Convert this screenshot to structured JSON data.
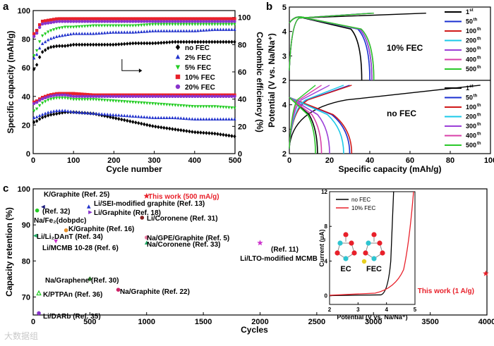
{
  "chart_data": [
    {
      "panel": "a",
      "type": "scatter",
      "xlabel": "Cycle number",
      "ylabel": "Specific capacity (mAh/g)",
      "y2label": "Coulombic efficiency (%)",
      "xlim": [
        0,
        500
      ],
      "ylim": [
        0,
        100
      ],
      "y2lim": [
        0,
        105
      ],
      "xticks": [
        0,
        100,
        200,
        300,
        400,
        500
      ],
      "yticks": [
        0,
        20,
        40,
        60,
        80,
        100
      ],
      "y2ticks": [
        0,
        20,
        40,
        60,
        80,
        100
      ],
      "legend": [
        {
          "name": "no FEC",
          "color": "#000000",
          "marker": "diamond"
        },
        {
          "name": "2% FEC",
          "color": "#2233cc",
          "marker": "triangle"
        },
        {
          "name": "5% FEC",
          "color": "#22cc22",
          "marker": "triangle-down"
        },
        {
          "name": "10% FEC",
          "color": "#e8202a",
          "marker": "square"
        },
        {
          "name": "20% FEC",
          "color": "#8833cc",
          "marker": "circle"
        }
      ],
      "x": [
        5,
        20,
        40,
        60,
        80,
        100,
        150,
        200,
        250,
        300,
        350,
        400,
        450,
        500
      ],
      "capacity_series": [
        {
          "name": "no FEC",
          "values": [
            22,
            25,
            27,
            28,
            29,
            29,
            28,
            25,
            22,
            19,
            17,
            15,
            14,
            12
          ]
        },
        {
          "name": "2% FEC",
          "values": [
            25,
            27,
            29,
            30,
            30,
            29,
            28,
            27,
            26,
            25,
            25,
            24,
            24,
            24
          ]
        },
        {
          "name": "5% FEC",
          "values": [
            30,
            35,
            38,
            39,
            39,
            38,
            38,
            37,
            36,
            35,
            34,
            33,
            33,
            32
          ]
        },
        {
          "name": "10% FEC",
          "values": [
            36,
            39,
            41,
            42,
            42,
            42,
            41,
            41,
            41,
            41,
            41,
            41,
            41,
            41
          ]
        },
        {
          "name": "20% FEC",
          "values": [
            35,
            38,
            40,
            41,
            41,
            40,
            40,
            40,
            40,
            40,
            40,
            40,
            40,
            40
          ]
        }
      ],
      "efficiency_series": [
        {
          "name": "no FEC",
          "values": [
            62,
            74,
            78,
            79,
            79,
            80,
            80,
            80,
            81,
            81,
            82,
            82,
            82,
            82
          ]
        },
        {
          "name": "2% FEC",
          "values": [
            70,
            80,
            84,
            86,
            87,
            88,
            88,
            89,
            89,
            90,
            90,
            90,
            91,
            91
          ]
        },
        {
          "name": "5% FEC",
          "values": [
            72,
            86,
            90,
            92,
            93,
            93,
            94,
            94,
            94,
            95,
            95,
            95,
            95,
            95
          ]
        },
        {
          "name": "10% FEC",
          "values": [
            88,
            97,
            98,
            99,
            99,
            99,
            99,
            99,
            99,
            99,
            99,
            99,
            99,
            99
          ]
        },
        {
          "name": "20% FEC",
          "values": [
            86,
            95,
            96,
            97,
            97,
            97,
            97,
            97,
            97,
            97,
            97,
            97,
            97,
            97
          ]
        }
      ]
    },
    {
      "panel": "b",
      "type": "line",
      "xlabel": "Specific capacity (mAh/g)",
      "ylabel": "Potential (V vs. Na/Na⁺)",
      "xlim": [
        0,
        100
      ],
      "xticks": [
        0,
        20,
        40,
        60,
        80,
        100
      ],
      "ylim": [
        2,
        5
      ],
      "yticks": [
        2,
        3,
        4,
        5
      ],
      "legend_items": [
        "1",
        "50",
        "100",
        "200",
        "300",
        "400",
        "500"
      ],
      "legend_suffixes": [
        "st",
        "th",
        "th",
        "th",
        "th",
        "th",
        "th"
      ],
      "colors": [
        "#000000",
        "#1a2fd0",
        "#d01a1a",
        "#1ac8e8",
        "#9b3fd8",
        "#d83fa8",
        "#2ac82a"
      ],
      "upper_label": "10% FEC",
      "lower_label": "no FEC",
      "upper_discharge_end": [
        36,
        40,
        41,
        41,
        41,
        42,
        42
      ],
      "lower_discharge_end": [
        14,
        30,
        31,
        27,
        20,
        16,
        13
      ],
      "upper_charge_end": [
        68,
        41,
        41,
        41,
        42,
        42,
        42
      ],
      "lower_charge_end": [
        95,
        30,
        31,
        27,
        20,
        16,
        13
      ]
    },
    {
      "panel": "c",
      "type": "scatter",
      "xlabel": "Cycles",
      "ylabel": "Capacity retention (%)",
      "xlim": [
        0,
        4000
      ],
      "ylim": [
        65,
        100
      ],
      "xticks": [
        0,
        500,
        1000,
        1500,
        2000,
        2500,
        3000,
        3500,
        4000
      ],
      "yticks": [
        70,
        80,
        90,
        100
      ],
      "points": [
        {
          "label": "This work (500 mA/g)",
          "x": 1000,
          "y": 98,
          "color": "#e8202a",
          "marker": "star"
        },
        {
          "label": "K/Graphite (Ref. 25)",
          "x": 90,
          "y": 95,
          "color": "#1a1a7a",
          "marker": "triangle-left"
        },
        {
          "label": "Li/SEI-modified graphite (Ref. 13)",
          "x": 490,
          "y": 95,
          "color": "#2233cc",
          "marker": "triangle"
        },
        {
          "label": "(Ref. 32)",
          "x": 35,
          "y": 94,
          "color": "#22cc22",
          "marker": "circle"
        },
        {
          "label": "Li/Graphite (Ref. 18)",
          "x": 500,
          "y": 93.5,
          "color": "#8833cc",
          "marker": "triangle-right"
        },
        {
          "label": "Li/Coronene (Ref. 31)",
          "x": 960,
          "y": 92,
          "color": "#882222",
          "marker": "circle"
        },
        {
          "label": "K/Graphite (Ref. 16)",
          "x": 290,
          "y": 88.5,
          "color": "#e8902a",
          "marker": "circle"
        },
        {
          "label": "Li/Li₂DAnT (Ref. 34)",
          "x": 20,
          "y": 87,
          "color": "#22aa66",
          "marker": "triangle-left"
        },
        {
          "label": "Na/GPE/Graphite (Ref. 5)",
          "x": 1000,
          "y": 86.5,
          "color": "#e87aa0",
          "marker": "circle"
        },
        {
          "label": "Li/MCMB 10-28 (Ref. 6)",
          "x": 200,
          "y": 85.5,
          "color": "#cc33cc",
          "marker": "triangle-down"
        },
        {
          "label": "Na/Coronene (Ref. 33)",
          "x": 1000,
          "y": 85,
          "color": "#22aa66",
          "marker": "triangle"
        },
        {
          "label": "Li/LTO-modified MCMB (Ref. 11)",
          "x": 2000,
          "y": 85,
          "color": "#cc33cc",
          "marker": "star"
        },
        {
          "label": "Na/Graphene (Ref. 30)",
          "x": 500,
          "y": 75,
          "color": "#226622",
          "marker": "diamond"
        },
        {
          "label": "K/PTPAn (Ref. 36)",
          "x": 50,
          "y": 71,
          "color": "#22cc22",
          "marker": "triangle-outline"
        },
        {
          "label": "Na/Graphite (Ref. 22)",
          "x": 750,
          "y": 72,
          "color": "#cc2266",
          "marker": "circle"
        },
        {
          "label": "Li/DARb (Ref. 35)",
          "x": 50,
          "y": 65.5,
          "color": "#8833cc",
          "marker": "circle"
        },
        {
          "label": "This work (1 A/g)",
          "x": 3990,
          "y": 76.5,
          "color": "#e8202a",
          "marker": "star"
        }
      ]
    },
    {
      "panel": "c-inset",
      "type": "line",
      "xlabel": "Potential (V vs. Na/Na⁺)",
      "ylabel": "Current (μA)",
      "xlim": [
        2,
        5
      ],
      "ylim": [
        -1,
        12
      ],
      "xticks": [
        2,
        3,
        4,
        5
      ],
      "yticks": [
        0,
        4,
        8,
        12
      ],
      "legend": [
        {
          "name": "no FEC",
          "color": "#000000"
        },
        {
          "name": "10% FEC",
          "color": "#e8202a"
        }
      ],
      "molecule_labels": [
        "EC",
        "FEC"
      ]
    }
  ],
  "labels": {
    "panel_a": "a",
    "panel_b": "b",
    "panel_c": "c",
    "nafe_label": "Na/Fe₂(dobpdc)",
    "watermark": "大数据组"
  }
}
